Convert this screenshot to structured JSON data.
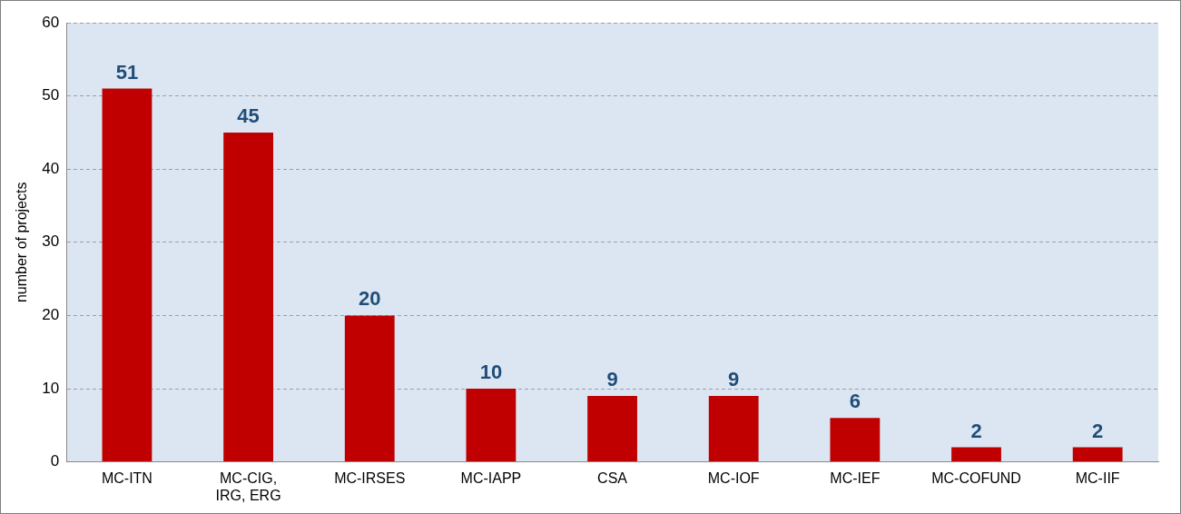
{
  "chart_data": {
    "type": "bar",
    "y_label": "number of projects",
    "categories": [
      "MC-ITN",
      "MC-CIG,\nIRG, ERG",
      "MC-IRSES",
      "MC-IAPP",
      "CSA",
      "MC-IOF",
      "MC-IEF",
      "MC-COFUND",
      "MC-IIF"
    ],
    "values": [
      51,
      45,
      20,
      10,
      9,
      9,
      6,
      2,
      2
    ],
    "color": "#c00000",
    "ylim": [
      0,
      60
    ],
    "yticks": [
      0,
      10,
      20,
      30,
      40,
      50,
      60
    ],
    "grid": true,
    "data_labels": true
  }
}
